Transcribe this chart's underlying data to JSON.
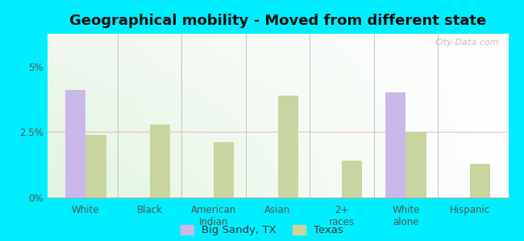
{
  "title": "Geographical mobility - Moved from different state",
  "categories": [
    "White",
    "Black",
    "American\nIndian",
    "Asian",
    "2+\nraces",
    "White\nalone",
    "Hispanic"
  ],
  "big_sandy": [
    4.1,
    0.0,
    0.0,
    0.0,
    0.0,
    4.0,
    0.0
  ],
  "texas": [
    2.4,
    2.8,
    2.1,
    3.9,
    1.4,
    2.5,
    1.3
  ],
  "bar_color_city": "#c9b8e8",
  "bar_color_state": "#c8d5a0",
  "background_outer": "#00eeff",
  "background_inner_tl": "#e8f5e0",
  "background_inner_br": "#f5fff5",
  "ylim": [
    0,
    6.25
  ],
  "ytick_labels": [
    "0%",
    "2.5%",
    "5%"
  ],
  "ytick_values": [
    0,
    2.5,
    5.0
  ],
  "legend_city": "Big Sandy, TX",
  "legend_state": "Texas",
  "bar_width": 0.32,
  "title_fontsize": 13,
  "tick_fontsize": 8.5,
  "legend_fontsize": 9.5,
  "watermark": "City-Data.com"
}
